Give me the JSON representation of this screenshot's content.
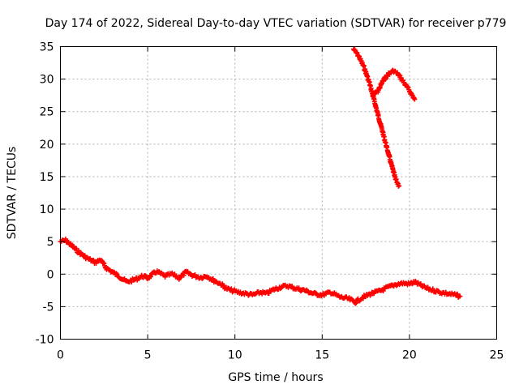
{
  "chart_data": {
    "type": "scatter",
    "title": "Day 174 of 2022, Sidereal Day-to-day VTEC variation (SDTVAR) for receiver p779",
    "xlabel": "GPS time / hours",
    "ylabel": "SDTVAR / TECUs",
    "xlim": [
      0,
      25
    ],
    "ylim": [
      -10,
      35
    ],
    "grid": true,
    "xticks": [
      0,
      5,
      10,
      15,
      20,
      25
    ],
    "yticks": [
      -10,
      -5,
      0,
      5,
      10,
      15,
      20,
      25,
      30,
      35
    ],
    "xtick_labels": [
      "0",
      "5",
      "10",
      "15",
      "20",
      "25"
    ],
    "ytick_labels": [
      "-10",
      "-5",
      "0",
      "5",
      "10",
      "15",
      "20",
      "25",
      "30",
      "35"
    ],
    "marker": "+",
    "color": "#ff0000",
    "series": [
      {
        "name": "main",
        "x": [
          0.0,
          0.3,
          0.6,
          1.0,
          1.5,
          2.0,
          2.3,
          2.6,
          3.0,
          3.4,
          3.8,
          4.3,
          4.7,
          5.0,
          5.5,
          6.0,
          6.4,
          6.8,
          7.2,
          7.6,
          8.0,
          8.4,
          8.8,
          9.2,
          9.5,
          9.8,
          10.2,
          10.6,
          11.0,
          11.5,
          11.8,
          12.2,
          12.6,
          13.0,
          13.5,
          14.0,
          14.5,
          15.0,
          15.5,
          16.0,
          16.5,
          16.9,
          17.3,
          17.8,
          18.3,
          18.8,
          19.2,
          19.6,
          20.0,
          20.3,
          20.7,
          21.0,
          21.4,
          21.8,
          22.2,
          22.6,
          22.9
        ],
        "y": [
          5.0,
          5.2,
          4.5,
          3.5,
          2.5,
          1.8,
          2.2,
          1.0,
          0.3,
          -0.4,
          -1.2,
          -0.8,
          -0.3,
          -0.6,
          0.4,
          -0.3,
          0.0,
          -0.6,
          0.3,
          -0.2,
          -0.5,
          -0.3,
          -1.0,
          -1.5,
          -2.2,
          -2.5,
          -2.8,
          -3.0,
          -3.2,
          -2.8,
          -3.0,
          -2.4,
          -2.0,
          -1.8,
          -2.2,
          -2.5,
          -3.0,
          -3.2,
          -2.8,
          -3.5,
          -3.8,
          -4.3,
          -3.6,
          -3.0,
          -2.6,
          -2.0,
          -1.6,
          -1.4,
          -1.5,
          -1.2,
          -1.8,
          -2.2,
          -2.5,
          -2.8,
          -3.0,
          -3.2,
          -3.4
        ]
      },
      {
        "name": "upper-1",
        "x": [
          16.8,
          17.1,
          17.4,
          17.7,
          18.0,
          18.3,
          18.6,
          18.9,
          19.2,
          19.4
        ],
        "y": [
          34.6,
          33.5,
          31.8,
          29.5,
          26.5,
          23.5,
          20.5,
          17.5,
          14.6,
          13.6
        ]
      },
      {
        "name": "upper-2",
        "x": [
          17.9,
          18.2,
          18.5,
          18.8,
          19.1,
          19.4,
          19.7,
          20.0,
          20.3
        ],
        "y": [
          27.5,
          28.2,
          29.8,
          30.8,
          31.3,
          30.6,
          29.4,
          28.2,
          26.9
        ]
      }
    ]
  }
}
